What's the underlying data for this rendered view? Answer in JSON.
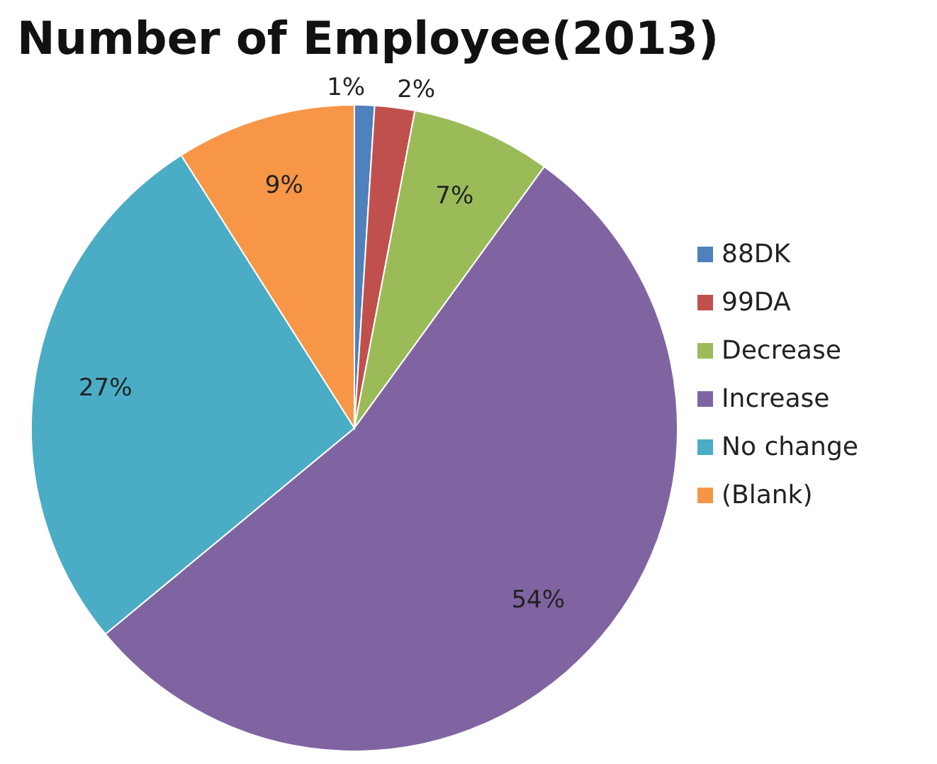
{
  "chart_data": {
    "type": "pie",
    "title": "Number of Employee(2013)",
    "categories": [
      "88DK",
      "99DA",
      "Decrease",
      "Increase",
      "No change",
      "(Blank)"
    ],
    "values": [
      1,
      2,
      7,
      54,
      27,
      9
    ],
    "value_labels": [
      "1%",
      "2%",
      "7%",
      "54%",
      "27%",
      "9%"
    ],
    "colors": [
      "#4f81bd",
      "#c0504d",
      "#9bbb59",
      "#8064a2",
      "#4bacc6",
      "#f79646"
    ],
    "legend": "right"
  }
}
